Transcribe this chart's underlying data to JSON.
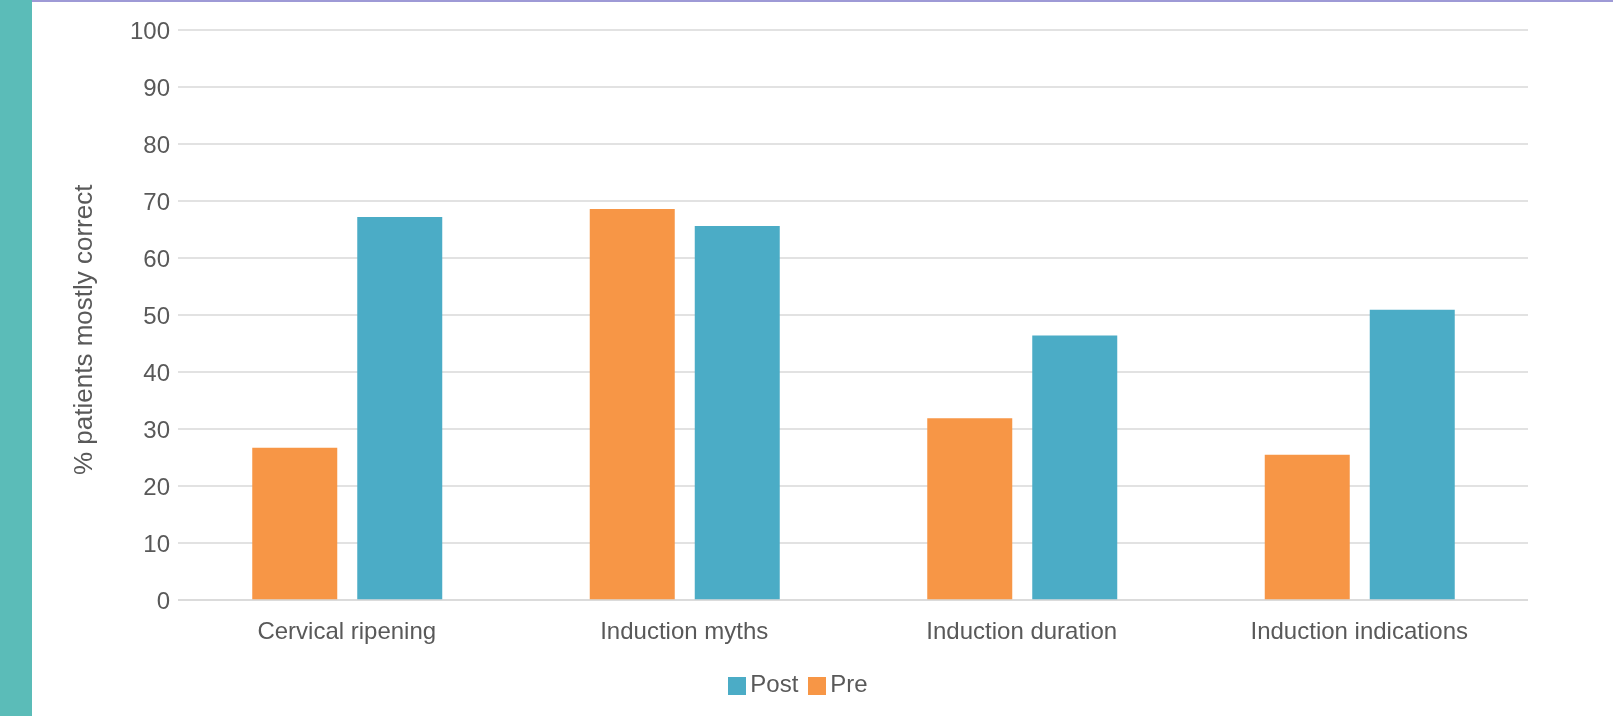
{
  "chart_data": {
    "type": "bar",
    "ylabel": "% patients mostly correct",
    "categories": [
      "Cervical ripening",
      "Induction myths",
      "Induction duration",
      "Induction indications"
    ],
    "series": [
      {
        "name": "Pre",
        "color": "#f79646",
        "values": [
          26.7,
          68.6,
          31.9,
          25.5
        ]
      },
      {
        "name": "Post",
        "color": "#4bacc6",
        "values": [
          67.2,
          65.6,
          46.4,
          50.9
        ]
      }
    ],
    "ylim": [
      0,
      100
    ],
    "yticks": [
      0,
      10,
      20,
      30,
      40,
      50,
      60,
      70,
      80,
      90,
      100
    ],
    "grid": "y",
    "legend": "bottom"
  }
}
